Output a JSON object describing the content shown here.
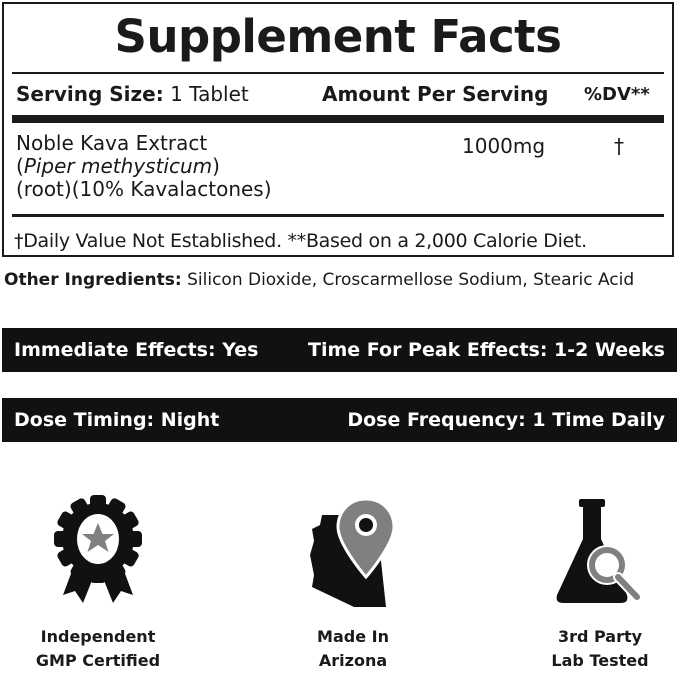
{
  "facts": {
    "title": "Supplement Facts",
    "serving_label": "Serving Size:",
    "serving_value": "1 Tablet",
    "amount_header": "Amount Per Serving",
    "dv_header": "%DV**",
    "ingredient": {
      "name": "Noble Kava Extract",
      "latin": "Piper methysticum",
      "detail": "(root)(10% Kavalactones)",
      "amount": "1000mg",
      "dv": "†"
    },
    "footnote": "†Daily Value Not Established. **Based on a 2,000 Calorie Diet."
  },
  "other_ingredients": {
    "label": "Other Ingredients:",
    "value": "Silicon Dioxide, Croscarmellose Sodium, Stearic Acid"
  },
  "bars": [
    {
      "left": "Immediate Effects: Yes",
      "right": "Time For Peak Effects: 1-2 Weeks"
    },
    {
      "left": "Dose Timing: Night",
      "right": "Dose Frequency: 1 Time Daily"
    }
  ],
  "badges": [
    {
      "icon": "award-ribbon-icon",
      "line1": "Independent",
      "line2": "GMP Certified"
    },
    {
      "icon": "arizona-map-pin-icon",
      "line1": "Made In",
      "line2": "Arizona"
    },
    {
      "icon": "flask-magnifier-icon",
      "line1": "3rd Party",
      "line2": "Lab Tested"
    }
  ],
  "colors": {
    "ink": "#1a1a1a",
    "icon_gray": "#808080"
  }
}
